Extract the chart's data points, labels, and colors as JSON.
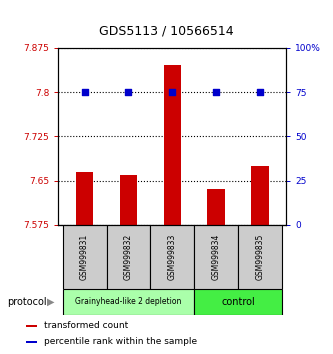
{
  "title": "GDS5113 / 10566514",
  "samples": [
    "GSM999831",
    "GSM999832",
    "GSM999833",
    "GSM999834",
    "GSM999835"
  ],
  "bar_values": [
    7.665,
    7.66,
    7.845,
    7.635,
    7.675
  ],
  "percentile_values": [
    75,
    75,
    75,
    75,
    75
  ],
  "bar_color": "#cc0000",
  "dot_color": "#0000cc",
  "ylim_left": [
    7.575,
    7.875
  ],
  "ylim_right": [
    0,
    100
  ],
  "yticks_left": [
    7.575,
    7.65,
    7.725,
    7.8,
    7.875
  ],
  "yticks_right": [
    0,
    25,
    50,
    75,
    100
  ],
  "ytick_labels_left": [
    "7.575",
    "7.65",
    "7.725",
    "7.8",
    "7.875"
  ],
  "ytick_labels_right": [
    "0",
    "25",
    "50",
    "75",
    "100%"
  ],
  "groups": [
    {
      "label": "Grainyhead-like 2 depletion",
      "start": 0,
      "end": 3,
      "color": "#aaffaa"
    },
    {
      "label": "control",
      "start": 3,
      "end": 5,
      "color": "#44ee44"
    }
  ],
  "protocol_label": "protocol",
  "legend": [
    {
      "color": "#cc0000",
      "label": "transformed count"
    },
    {
      "color": "#0000cc",
      "label": "percentile rank within the sample"
    }
  ],
  "bar_bottom": 7.575,
  "bar_width": 0.4
}
